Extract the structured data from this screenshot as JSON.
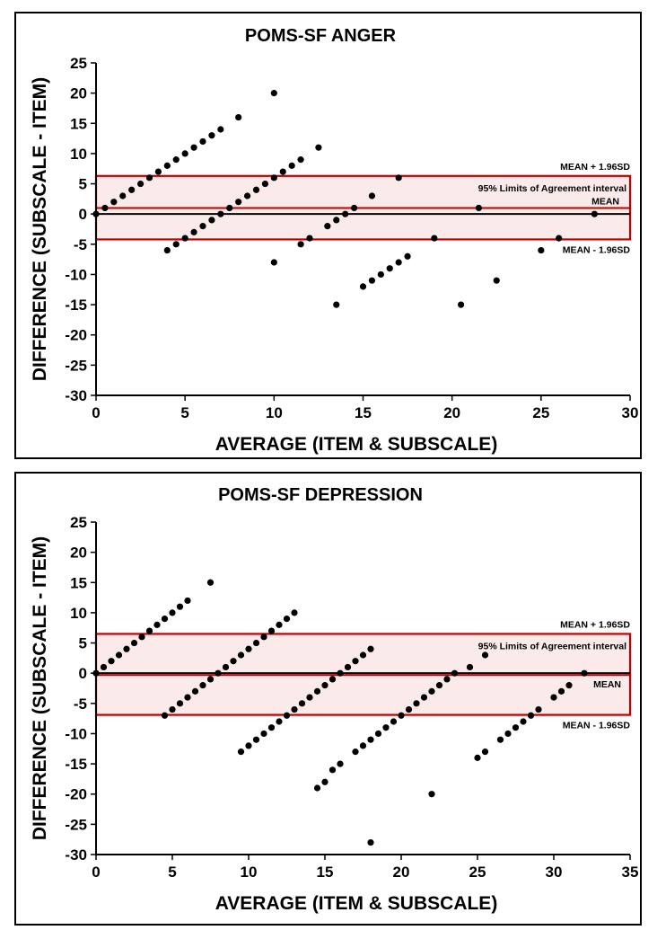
{
  "colors": {
    "limits_box": "#c00000",
    "limits_fill": "#fbeaea",
    "marker": "#000000",
    "mean_line": "#000000"
  },
  "chart_data": [
    {
      "type": "scatter",
      "title": "POMS-SF ANGER",
      "xlabel": "AVERAGE (ITEM & SUBSCALE)",
      "ylabel": "DIFFERENCE (SUBSCALE - ITEM)",
      "xlim": [
        0,
        30
      ],
      "ylim": [
        -30,
        25
      ],
      "x_ticks": [
        "0",
        "5",
        "10",
        "15",
        "20",
        "25",
        "30"
      ],
      "y_ticks": [
        "25",
        "20",
        "15",
        "10",
        "5",
        "0",
        "-5",
        "-10",
        "-15",
        "-20",
        "-25",
        "-30"
      ],
      "mean": 1.0,
      "upper_loa": 6.3,
      "lower_loa": -4.2,
      "mean_label": "MEAN",
      "upper_label": "MEAN + 1.96SD",
      "lower_label": "MEAN - 1.96SD",
      "interval_label": "95% Limits of Agreement interval",
      "points": [
        [
          0,
          0
        ],
        [
          0.5,
          1
        ],
        [
          1,
          2
        ],
        [
          1.5,
          3
        ],
        [
          2,
          4
        ],
        [
          2.5,
          5
        ],
        [
          3,
          6
        ],
        [
          3.5,
          7
        ],
        [
          4,
          8
        ],
        [
          4.5,
          9
        ],
        [
          5,
          10
        ],
        [
          5.5,
          11
        ],
        [
          6,
          12
        ],
        [
          6.5,
          13
        ],
        [
          7,
          14
        ],
        [
          8,
          16
        ],
        [
          10,
          20
        ],
        [
          4,
          -6
        ],
        [
          4.5,
          -5
        ],
        [
          5,
          -4
        ],
        [
          5.5,
          -3
        ],
        [
          6,
          -2
        ],
        [
          6.5,
          -1
        ],
        [
          7,
          0
        ],
        [
          7.5,
          1
        ],
        [
          8,
          2
        ],
        [
          8.5,
          3
        ],
        [
          9,
          4
        ],
        [
          9.5,
          5
        ],
        [
          10,
          6
        ],
        [
          10.5,
          7
        ],
        [
          11,
          8
        ],
        [
          11.5,
          9
        ],
        [
          12.5,
          11
        ],
        [
          10,
          -8
        ],
        [
          11.5,
          -5
        ],
        [
          12,
          -4
        ],
        [
          13,
          -2
        ],
        [
          13.5,
          -1
        ],
        [
          14,
          0
        ],
        [
          14.5,
          1
        ],
        [
          15.5,
          3
        ],
        [
          17,
          6
        ],
        [
          13.5,
          -15
        ],
        [
          15,
          -12
        ],
        [
          15.5,
          -11
        ],
        [
          16,
          -10
        ],
        [
          16.5,
          -9
        ],
        [
          17,
          -8
        ],
        [
          17.5,
          -7
        ],
        [
          19,
          -4
        ],
        [
          20.5,
          -15
        ],
        [
          21.5,
          1
        ],
        [
          22.5,
          -11
        ],
        [
          25,
          -6
        ],
        [
          26,
          -4
        ],
        [
          28,
          0
        ]
      ]
    },
    {
      "type": "scatter",
      "title": "POMS-SF DEPRESSION",
      "xlabel": "AVERAGE (ITEM & SUBSCALE)",
      "ylabel": "DIFFERENCE (SUBSCALE - ITEM)",
      "xlim": [
        0,
        35
      ],
      "ylim": [
        -30,
        25
      ],
      "x_ticks": [
        "0",
        "5",
        "10",
        "15",
        "20",
        "25",
        "30",
        "35"
      ],
      "y_ticks": [
        "25",
        "20",
        "15",
        "10",
        "5",
        "0",
        "-5",
        "-10",
        "-15",
        "-20",
        "-25",
        "-30"
      ],
      "mean": -0.3,
      "upper_loa": 6.5,
      "lower_loa": -6.9,
      "mean_label": "MEAN",
      "upper_label": "MEAN + 1.96SD",
      "lower_label": "MEAN - 1.96SD",
      "interval_label": "95% Limits of Agreement interval",
      "points": [
        [
          0,
          0
        ],
        [
          0.5,
          1
        ],
        [
          1,
          2
        ],
        [
          1.5,
          3
        ],
        [
          2,
          4
        ],
        [
          2.5,
          5
        ],
        [
          3,
          6
        ],
        [
          3.5,
          7
        ],
        [
          4,
          8
        ],
        [
          4.5,
          9
        ],
        [
          5,
          10
        ],
        [
          5.5,
          11
        ],
        [
          6,
          12
        ],
        [
          7.5,
          15
        ],
        [
          4.5,
          -7
        ],
        [
          5,
          -6
        ],
        [
          5.5,
          -5
        ],
        [
          6,
          -4
        ],
        [
          6.5,
          -3
        ],
        [
          7,
          -2
        ],
        [
          7.5,
          -1
        ],
        [
          8,
          0
        ],
        [
          8.5,
          1
        ],
        [
          9,
          2
        ],
        [
          9.5,
          3
        ],
        [
          10,
          4
        ],
        [
          10.5,
          5
        ],
        [
          11,
          6
        ],
        [
          11.5,
          7
        ],
        [
          12,
          8
        ],
        [
          12.5,
          9
        ],
        [
          13,
          10
        ],
        [
          9.5,
          -13
        ],
        [
          10,
          -12
        ],
        [
          10.5,
          -11
        ],
        [
          11,
          -10
        ],
        [
          11.5,
          -9
        ],
        [
          12,
          -8
        ],
        [
          12.5,
          -7
        ],
        [
          13,
          -6
        ],
        [
          13.5,
          -5
        ],
        [
          14,
          -4
        ],
        [
          14.5,
          -3
        ],
        [
          15,
          -2
        ],
        [
          15.5,
          -1
        ],
        [
          16,
          0
        ],
        [
          16.5,
          1
        ],
        [
          17,
          2
        ],
        [
          17.5,
          3
        ],
        [
          18,
          4
        ],
        [
          14.5,
          -19
        ],
        [
          15,
          -18
        ],
        [
          15.5,
          -16
        ],
        [
          16,
          -15
        ],
        [
          17,
          -13
        ],
        [
          17.5,
          -12
        ],
        [
          18,
          -11
        ],
        [
          18.5,
          -10
        ],
        [
          19,
          -9
        ],
        [
          19.5,
          -8
        ],
        [
          20,
          -7
        ],
        [
          20.5,
          -6
        ],
        [
          21,
          -5
        ],
        [
          21.5,
          -4
        ],
        [
          22,
          -3
        ],
        [
          22.5,
          -2
        ],
        [
          23,
          -1
        ],
        [
          23.5,
          0
        ],
        [
          24.5,
          1
        ],
        [
          25.5,
          3
        ],
        [
          18,
          -28
        ],
        [
          22,
          -20
        ],
        [
          25,
          -14
        ],
        [
          25.5,
          -13
        ],
        [
          26.5,
          -11
        ],
        [
          27,
          -10
        ],
        [
          27.5,
          -9
        ],
        [
          28,
          -8
        ],
        [
          28.5,
          -7
        ],
        [
          29,
          -6
        ],
        [
          30,
          -4
        ],
        [
          30.5,
          -3
        ],
        [
          31,
          -2
        ],
        [
          32,
          0
        ]
      ]
    }
  ]
}
